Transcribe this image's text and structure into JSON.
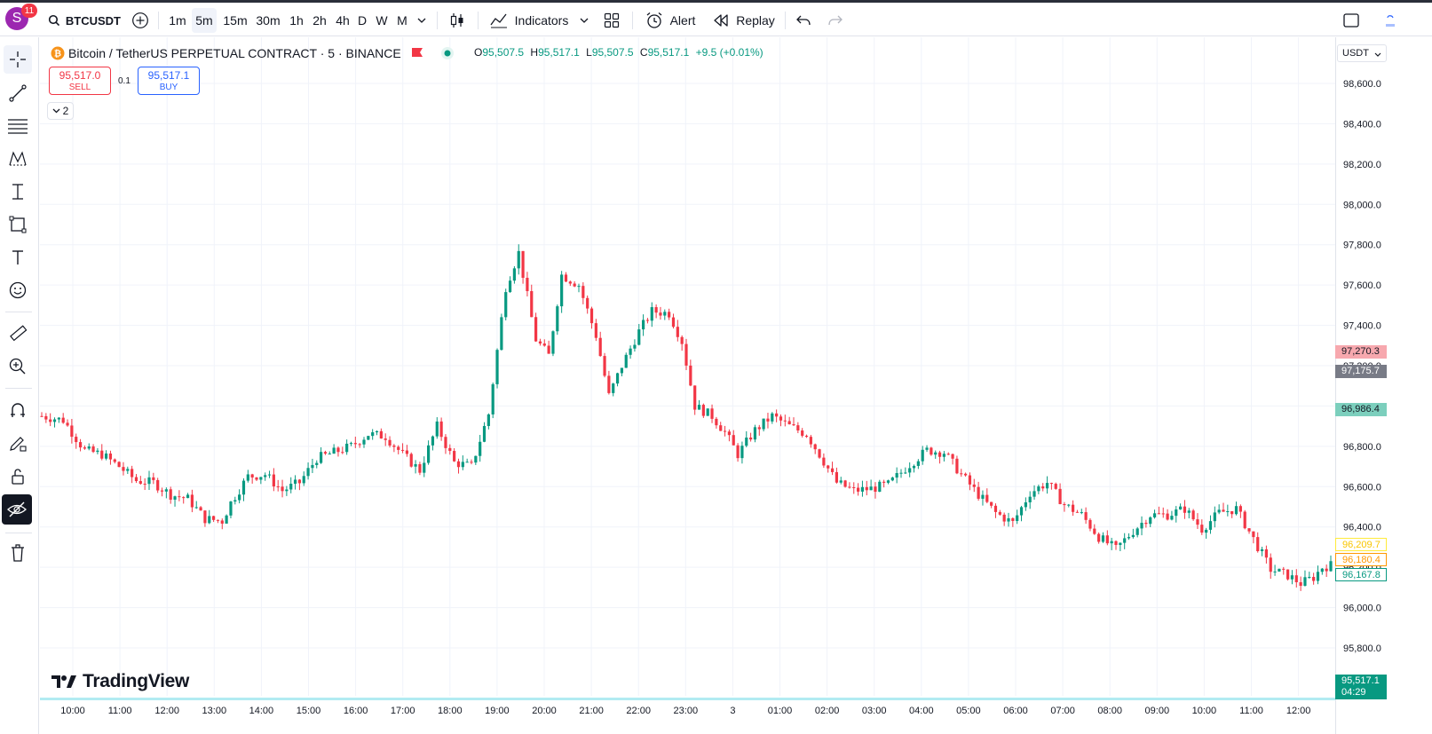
{
  "toolbar": {
    "avatar_letter": "S",
    "notifications": "11",
    "symbol": "BTCUSDT",
    "intervals": [
      "1m",
      "5m",
      "15m",
      "30m",
      "1h",
      "2h",
      "4h",
      "D",
      "W",
      "M"
    ],
    "active_interval": "5m",
    "indicators_label": "Indicators",
    "alert_label": "Alert",
    "replay_label": "Replay"
  },
  "legend": {
    "title": "Bitcoin / TetherUS PERPETUAL CONTRACT · 5 · BINANCE",
    "o_key": "O",
    "open": "95,507.5",
    "h_key": "H",
    "high": "95,517.1",
    "l_key": "L",
    "low": "95,507.5",
    "c_key": "C",
    "close": "95,517.1",
    "change": "+9.5 (+0.01%)"
  },
  "trade": {
    "sell_price": "95,517.0",
    "sell_label": "SELL",
    "qty": "0.1",
    "buy_price": "95,517.1",
    "buy_label": "BUY"
  },
  "indicators_collapsed_count": "2",
  "brand": "TradingView",
  "currency": "USDT",
  "price_labels": {
    "label1": "97,270.3",
    "label2": "97,175.7",
    "label3": "96,986.4",
    "label4": "96,209.7",
    "label5": "96,180.4",
    "label6": "96,167.8",
    "last_price": "95,517.1",
    "countdown": "04:29"
  },
  "colors": {
    "up": "#089981",
    "down": "#f23645",
    "grid": "#f0f3fa",
    "accent": "#2962ff"
  },
  "chart_data": {
    "type": "candlestick",
    "y_ticks": [
      98600,
      98400,
      98200,
      98000,
      97800,
      97600,
      97400,
      97200,
      97000,
      96800,
      96600,
      96400,
      96200,
      96000,
      95800
    ],
    "y_tick_labels": [
      "98,600.0",
      "98,400.0",
      "98,200.0",
      "98,000.0",
      "97,800.0",
      "97,600.0",
      "97,400.0",
      "97,200.0",
      "97,000.0",
      "96,800.0",
      "96,600.0",
      "96,400.0",
      "96,200.0",
      "96,000.0",
      "95,800.0"
    ],
    "x_tick_labels": [
      "10:00",
      "11:00",
      "12:00",
      "13:00",
      "14:00",
      "15:00",
      "16:00",
      "17:00",
      "18:00",
      "19:00",
      "20:00",
      "21:00",
      "22:00",
      "23:00",
      "3",
      "01:00",
      "02:00",
      "03:00",
      "04:00",
      "05:00",
      "06:00",
      "07:00",
      "08:00",
      "09:00",
      "10:00",
      "11:00",
      "12:00"
    ],
    "ylim": [
      95700,
      98700
    ],
    "price_trajectory": [
      [
        0,
        96950
      ],
      [
        5,
        96930
      ],
      [
        10,
        96780
      ],
      [
        14,
        96760
      ],
      [
        18,
        96700
      ],
      [
        22,
        96630
      ],
      [
        26,
        96620
      ],
      [
        30,
        96560
      ],
      [
        34,
        96540
      ],
      [
        38,
        96440
      ],
      [
        42,
        96430
      ],
      [
        44,
        96520
      ],
      [
        48,
        96650
      ],
      [
        52,
        96660
      ],
      [
        56,
        96580
      ],
      [
        60,
        96620
      ],
      [
        64,
        96740
      ],
      [
        68,
        96770
      ],
      [
        72,
        96800
      ],
      [
        76,
        96860
      ],
      [
        80,
        96850
      ],
      [
        84,
        96760
      ],
      [
        88,
        96680
      ],
      [
        92,
        96900
      ],
      [
        96,
        96720
      ],
      [
        100,
        96700
      ],
      [
        104,
        96960
      ],
      [
        108,
        97590
      ],
      [
        111,
        97760
      ],
      [
        115,
        97330
      ],
      [
        118,
        97250
      ],
      [
        121,
        97650
      ],
      [
        125,
        97600
      ],
      [
        129,
        97350
      ],
      [
        132,
        97050
      ],
      [
        135,
        97200
      ],
      [
        139,
        97370
      ],
      [
        142,
        97470
      ],
      [
        146,
        97460
      ],
      [
        149,
        97320
      ],
      [
        152,
        97000
      ],
      [
        156,
        96950
      ],
      [
        159,
        96870
      ],
      [
        162,
        96760
      ],
      [
        166,
        96880
      ],
      [
        170,
        96950
      ],
      [
        174,
        96900
      ],
      [
        178,
        96860
      ],
      [
        181,
        96760
      ],
      [
        185,
        96620
      ],
      [
        189,
        96580
      ],
      [
        193,
        96590
      ],
      [
        197,
        96610
      ],
      [
        202,
        96710
      ],
      [
        206,
        96780
      ],
      [
        210,
        96770
      ],
      [
        214,
        96660
      ],
      [
        218,
        96560
      ],
      [
        222,
        96470
      ],
      [
        226,
        96420
      ],
      [
        230,
        96570
      ],
      [
        234,
        96620
      ],
      [
        238,
        96510
      ],
      [
        242,
        96460
      ],
      [
        246,
        96350
      ],
      [
        250,
        96290
      ],
      [
        254,
        96380
      ],
      [
        258,
        96460
      ],
      [
        262,
        96460
      ],
      [
        266,
        96490
      ],
      [
        270,
        96390
      ],
      [
        274,
        96470
      ],
      [
        278,
        96490
      ],
      [
        282,
        96340
      ],
      [
        286,
        96190
      ],
      [
        290,
        96160
      ],
      [
        293,
        96120
      ],
      [
        296,
        96150
      ],
      [
        298,
        96200
      ],
      [
        300,
        96210
      ]
    ]
  }
}
